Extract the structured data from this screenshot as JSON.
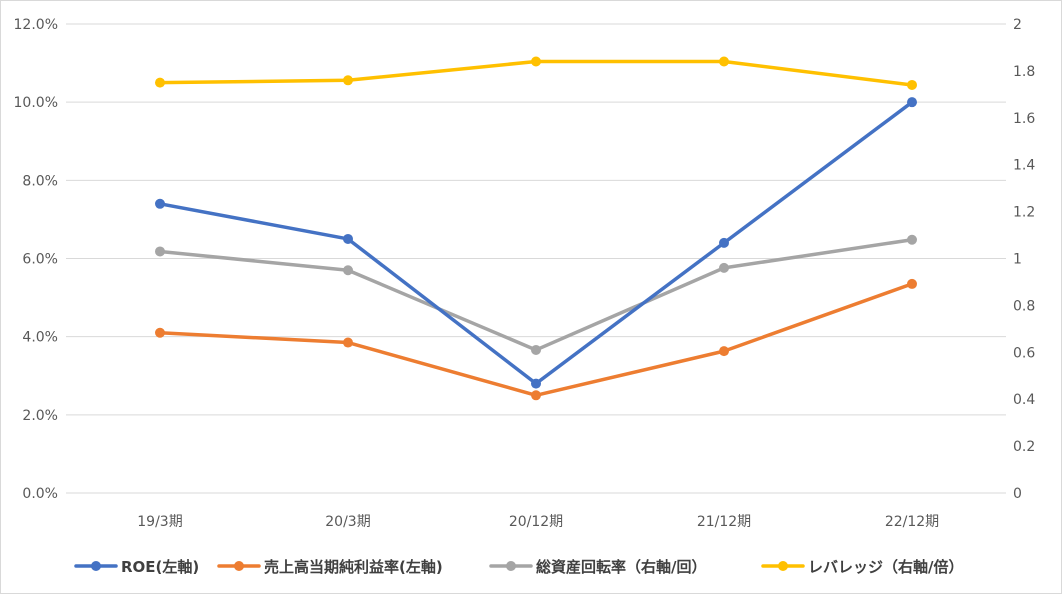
{
  "chart_data": {
    "type": "line",
    "categories": [
      "19/3期",
      "20/3期",
      "20/12期",
      "21/12期",
      "22/12期"
    ],
    "y_left": {
      "min": 0,
      "max": 12,
      "step": 2,
      "tick_labels": [
        "0.0%",
        "2.0%",
        "4.0%",
        "6.0%",
        "8.0%",
        "10.0%",
        "12.0%"
      ]
    },
    "y_right": {
      "min": 0,
      "max": 2,
      "step": 0.2,
      "tick_labels": [
        "0",
        "0.2",
        "0.4",
        "0.6",
        "0.8",
        "1",
        "1.2",
        "1.4",
        "1.6",
        "1.8",
        "2"
      ]
    },
    "grid": "horizontal",
    "legend_position": "bottom",
    "series": [
      {
        "name": "ROE(左軸)",
        "axis": "left",
        "color": "#4472C4",
        "values": [
          7.4,
          6.5,
          2.8,
          6.4,
          10.0
        ]
      },
      {
        "name": "売上高当期純利益率(左軸)",
        "axis": "left",
        "color": "#ED7D31",
        "values": [
          4.1,
          3.85,
          2.5,
          3.63,
          5.35
        ]
      },
      {
        "name": "総資産回転率（右軸/回）",
        "axis": "right",
        "color": "#A5A5A5",
        "values": [
          1.03,
          0.95,
          0.61,
          0.96,
          1.08
        ]
      },
      {
        "name": "レバレッジ（右軸/倍）",
        "axis": "right",
        "color": "#FFC000",
        "values": [
          1.75,
          1.76,
          1.84,
          1.84,
          1.74
        ]
      }
    ]
  }
}
